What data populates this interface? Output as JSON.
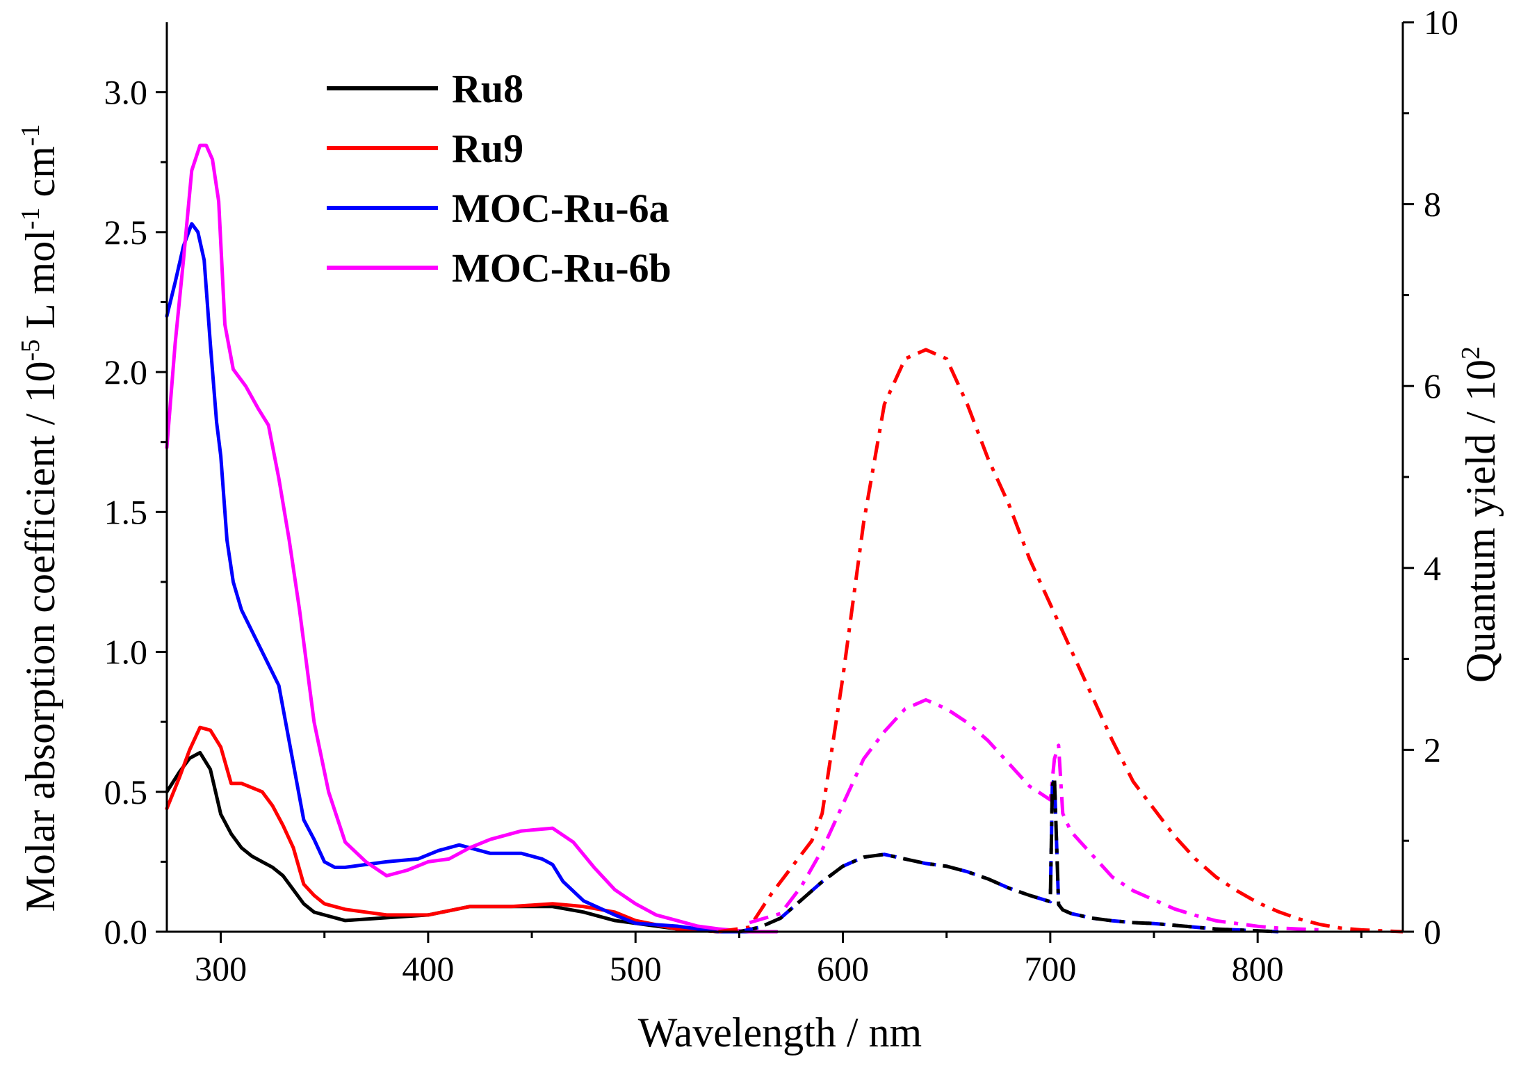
{
  "chart_data": {
    "type": "line",
    "xlabel": "Wavelength / nm",
    "ylabel": "Molar absorption coefficient / 10",
    "ylabel_sup1": "-5",
    "ylabel_mid": " L mol",
    "ylabel_sup2": "-1",
    "ylabel_end": " cm",
    "ylabel_sup3": "-1",
    "y2label": "Quantum yield / 10",
    "y2label_sup": "2",
    "xlim": [
      274,
      870
    ],
    "ylim": [
      0,
      3.25
    ],
    "y2lim": [
      0,
      10
    ],
    "x_ticks": [
      300,
      400,
      500,
      600,
      700,
      800
    ],
    "x_tick_labels": [
      "300",
      "400",
      "500",
      "600",
      "700",
      "800"
    ],
    "y_ticks": [
      0,
      0.5,
      1.0,
      1.5,
      2.0,
      2.5,
      3.0
    ],
    "y_tick_labels": [
      "0.0",
      "0.5",
      "1.0",
      "1.5",
      "2.0",
      "2.5",
      "3.0"
    ],
    "y2_ticks": [
      0,
      2,
      4,
      6,
      8,
      10
    ],
    "y2_tick_labels": [
      "0",
      "2",
      "4",
      "6",
      "8",
      "10"
    ],
    "legend_position": "top-left",
    "absorption_series": [
      {
        "name": "Ru8",
        "color": "#000000",
        "x": [
          274,
          280,
          285,
          290,
          295,
          300,
          305,
          310,
          315,
          320,
          325,
          330,
          335,
          340,
          345,
          350,
          360,
          380,
          400,
          420,
          440,
          460,
          475,
          490,
          500,
          520,
          540,
          555,
          568
        ],
        "y": [
          0.5,
          0.57,
          0.62,
          0.64,
          0.58,
          0.42,
          0.35,
          0.3,
          0.27,
          0.25,
          0.23,
          0.2,
          0.15,
          0.1,
          0.07,
          0.06,
          0.04,
          0.05,
          0.06,
          0.09,
          0.09,
          0.09,
          0.07,
          0.04,
          0.03,
          0.01,
          0.0,
          0.0,
          0.0
        ]
      },
      {
        "name": "Ru9",
        "color": "#ff0000",
        "x": [
          274,
          280,
          285,
          290,
          295,
          300,
          305,
          310,
          320,
          325,
          330,
          335,
          340,
          345,
          350,
          360,
          380,
          400,
          420,
          440,
          460,
          475,
          490,
          500,
          520,
          540,
          555,
          568
        ],
        "y": [
          0.44,
          0.55,
          0.65,
          0.73,
          0.72,
          0.66,
          0.53,
          0.53,
          0.5,
          0.45,
          0.38,
          0.3,
          0.17,
          0.13,
          0.1,
          0.08,
          0.06,
          0.06,
          0.09,
          0.09,
          0.1,
          0.09,
          0.07,
          0.04,
          0.01,
          0.0,
          0.0,
          0.0
        ]
      },
      {
        "name": "MOC-Ru-6a",
        "color": "#0000ff",
        "x": [
          274,
          278,
          282,
          286,
          289,
          292,
          295,
          298,
          300,
          303,
          306,
          310,
          320,
          328,
          335,
          340,
          345,
          350,
          355,
          360,
          370,
          380,
          395,
          405,
          415,
          420,
          430,
          445,
          455,
          460,
          465,
          475,
          490,
          500,
          520,
          540,
          555,
          568
        ],
        "y": [
          2.2,
          2.32,
          2.45,
          2.53,
          2.5,
          2.4,
          2.1,
          1.82,
          1.7,
          1.4,
          1.25,
          1.15,
          1.0,
          0.88,
          0.6,
          0.4,
          0.33,
          0.25,
          0.23,
          0.23,
          0.24,
          0.25,
          0.26,
          0.29,
          0.31,
          0.3,
          0.28,
          0.28,
          0.26,
          0.24,
          0.18,
          0.11,
          0.06,
          0.03,
          0.02,
          0.0,
          0.0,
          0.0
        ]
      },
      {
        "name": "MOC-Ru-6b",
        "color": "#ff00ff",
        "x": [
          274,
          278,
          282,
          286,
          290,
          293,
          296,
          299,
          302,
          306,
          312,
          318,
          323,
          328,
          333,
          338,
          345,
          352,
          360,
          370,
          380,
          390,
          400,
          410,
          420,
          430,
          445,
          460,
          470,
          480,
          490,
          500,
          510,
          520,
          530,
          540,
          555,
          568
        ],
        "y": [
          1.73,
          2.1,
          2.4,
          2.72,
          2.81,
          2.81,
          2.76,
          2.61,
          2.17,
          2.01,
          1.95,
          1.87,
          1.81,
          1.62,
          1.4,
          1.15,
          0.75,
          0.5,
          0.32,
          0.25,
          0.2,
          0.22,
          0.25,
          0.26,
          0.3,
          0.33,
          0.36,
          0.37,
          0.32,
          0.23,
          0.15,
          0.1,
          0.06,
          0.04,
          0.02,
          0.01,
          0.0,
          0.0
        ]
      }
    ],
    "quantum_yield_series": [
      {
        "color": "#ff0000",
        "x": [
          540,
          555,
          565,
          575,
          585,
          590,
          600,
          610,
          620,
          630,
          640,
          650,
          660,
          670,
          680,
          690,
          700,
          710,
          720,
          730,
          740,
          750,
          760,
          770,
          780,
          790,
          800,
          810,
          820,
          830,
          840,
          850,
          860,
          870
        ],
        "y": [
          0.0,
          0.05,
          0.4,
          0.7,
          1.0,
          1.3,
          2.8,
          4.5,
          5.8,
          6.3,
          6.4,
          6.3,
          5.8,
          5.2,
          4.7,
          4.1,
          3.6,
          3.1,
          2.6,
          2.1,
          1.65,
          1.35,
          1.05,
          0.8,
          0.6,
          0.45,
          0.32,
          0.22,
          0.14,
          0.08,
          0.04,
          0.02,
          0.01,
          0.0
        ]
      },
      {
        "color": "#ff00ff",
        "x": [
          555,
          570,
          580,
          590,
          600,
          610,
          620,
          630,
          640,
          650,
          660,
          670,
          680,
          690,
          700,
          702,
          704,
          706,
          710,
          720,
          730,
          740,
          750,
          760,
          770,
          780,
          790,
          800,
          810,
          820,
          830
        ],
        "y": [
          0.1,
          0.2,
          0.5,
          0.9,
          1.4,
          1.9,
          2.2,
          2.45,
          2.55,
          2.45,
          2.3,
          2.1,
          1.85,
          1.6,
          1.45,
          1.9,
          2.05,
          1.3,
          1.1,
          0.85,
          0.6,
          0.45,
          0.35,
          0.25,
          0.18,
          0.12,
          0.09,
          0.06,
          0.04,
          0.03,
          0.02
        ]
      },
      {
        "color": "#0000ff",
        "x": [
          550,
          560,
          570,
          580,
          590,
          600,
          610,
          620,
          630,
          640,
          650,
          660,
          670,
          680,
          690,
          700,
          701,
          702,
          704,
          706,
          710,
          720,
          730,
          740,
          750,
          760,
          770,
          780,
          790,
          800,
          810
        ],
        "y": [
          0.0,
          0.05,
          0.15,
          0.35,
          0.55,
          0.72,
          0.82,
          0.85,
          0.8,
          0.75,
          0.72,
          0.66,
          0.58,
          0.48,
          0.4,
          0.33,
          1.6,
          1.7,
          0.3,
          0.24,
          0.2,
          0.15,
          0.12,
          0.1,
          0.09,
          0.07,
          0.05,
          0.03,
          0.02,
          0.01,
          0.0
        ]
      },
      {
        "color": "#000000",
        "x": [
          550,
          560,
          570,
          580,
          590,
          600,
          610,
          620,
          630,
          640,
          650,
          660,
          670,
          680,
          690,
          700,
          701,
          702,
          704,
          706,
          710,
          720,
          730,
          740,
          750,
          760,
          770,
          780,
          790,
          800,
          810
        ],
        "y": [
          0.0,
          0.05,
          0.15,
          0.35,
          0.55,
          0.72,
          0.82,
          0.85,
          0.8,
          0.75,
          0.72,
          0.66,
          0.58,
          0.48,
          0.4,
          0.33,
          1.6,
          1.7,
          0.3,
          0.24,
          0.2,
          0.15,
          0.12,
          0.1,
          0.09,
          0.07,
          0.05,
          0.03,
          0.02,
          0.01,
          0.0
        ]
      }
    ]
  }
}
